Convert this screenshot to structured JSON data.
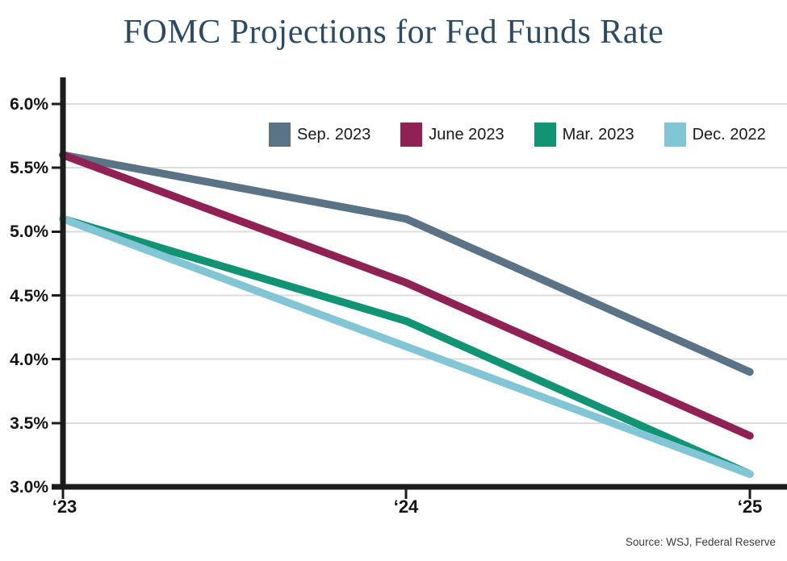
{
  "chart_data": {
    "type": "line",
    "title": "FOMC Projections for Fed Funds Rate",
    "xlabel": "",
    "ylabel": "",
    "x_tick_labels": [
      "‘23",
      "‘24",
      "‘25"
    ],
    "y_tick_values": [
      6.0,
      5.5,
      5.0,
      4.5,
      4.0,
      3.5,
      3.0
    ],
    "y_tick_labels": [
      "6.0%",
      "5.5%",
      "5.0%",
      "4.5%",
      "4.0%",
      "3.5%",
      "3.0%"
    ],
    "ylim": [
      3.0,
      6.0
    ],
    "grid": "horizontal",
    "legend_position": "top-center",
    "series": [
      {
        "name": "Sep. 2023",
        "color": "#5a7485",
        "values": [
          5.6,
          5.1,
          3.9
        ]
      },
      {
        "name": "June 2023",
        "color": "#8f2154",
        "values": [
          5.6,
          4.6,
          3.4
        ]
      },
      {
        "name": "Mar. 2023",
        "color": "#109473",
        "values": [
          5.1,
          4.3,
          3.1
        ]
      },
      {
        "name": "Dec. 2022",
        "color": "#82c6d6",
        "values": [
          5.1,
          4.1,
          3.1
        ]
      }
    ],
    "source": "Source: WSJ, Federal Reserve",
    "colors": {
      "title": "#2c4a63",
      "axis": "#1c1c1c",
      "grid": "#dcdcdc",
      "tick_label": "#141414",
      "source_text": "#3b3b3b"
    }
  }
}
